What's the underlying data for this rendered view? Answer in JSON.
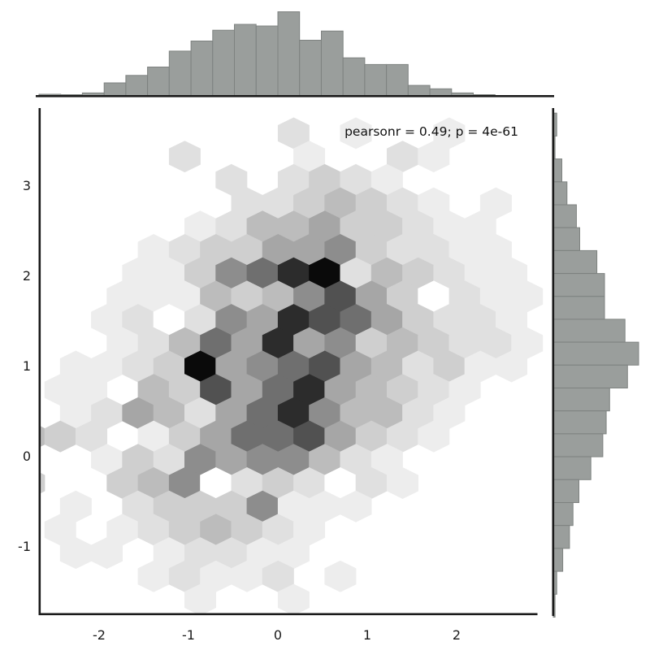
{
  "chart_data": {
    "type": "hexbin",
    "figure_kind": "joint-plot-with-marginal-histograms",
    "annotation": "pearsonr = 0.49; p = 4e-61",
    "pearson_r": 0.49,
    "p_value": "4e-61",
    "x_ticks": [
      -2,
      -1,
      0,
      1,
      2
    ],
    "y_ticks": [
      3,
      2,
      1,
      0,
      -1
    ],
    "x_tick_labels": [
      "-2",
      "-1",
      "0",
      "1",
      "2"
    ],
    "y_tick_labels": [
      "3",
      "2",
      "1",
      "0",
      "-1"
    ],
    "x_range": [
      -2.67,
      3.08
    ],
    "y_range": [
      -1.77,
      3.84
    ],
    "grid_on": false,
    "legend": "none",
    "colors": {
      "background": "#ffffff",
      "axis": "#1a1a1a",
      "hist_fill": "#9a9e9c",
      "hist_edge": "#7e8280",
      "density_levels": [
        "#ffffff",
        "#ededed",
        "#e0e0e0",
        "#cfcfcf",
        "#bcbcbc",
        "#a6a6a6",
        "#8d8d8d",
        "#6f6f6f",
        "#515151",
        "#2c2c2c",
        "#0a0a0a"
      ]
    },
    "hexbin": {
      "value_scale": "relative count density, 0 = lowest (white) to 10 = highest (black)",
      "grid": {
        "x0_even": -2.609,
        "x0_odd": -2.4349,
        "dx": 0.3482,
        "y0": 3.577,
        "dy": -0.2586
      },
      "rows": [
        {
          "k": 0,
          "cells": [
            [
              8,
              2
            ],
            [
              10,
              1
            ],
            [
              13,
              1
            ]
          ]
        },
        {
          "k": 1,
          "cells": [
            [
              4,
              2
            ],
            [
              8,
              1
            ],
            [
              11,
              2
            ],
            [
              12,
              1
            ]
          ]
        },
        {
          "k": 2,
          "cells": [
            [
              6,
              2
            ],
            [
              8,
              2
            ],
            [
              9,
              3
            ],
            [
              10,
              2
            ],
            [
              11,
              1
            ]
          ]
        },
        {
          "k": 3,
          "cells": [
            [
              6,
              2
            ],
            [
              7,
              2
            ],
            [
              8,
              3
            ],
            [
              9,
              4
            ],
            [
              10,
              3
            ],
            [
              11,
              2
            ],
            [
              12,
              1
            ],
            [
              14,
              1
            ]
          ]
        },
        {
          "k": 4,
          "cells": [
            [
              5,
              1
            ],
            [
              6,
              2
            ],
            [
              7,
              4
            ],
            [
              8,
              4
            ],
            [
              9,
              5
            ],
            [
              10,
              3
            ],
            [
              11,
              3
            ],
            [
              12,
              2
            ],
            [
              13,
              1
            ],
            [
              14,
              1
            ]
          ]
        },
        {
          "k": 5,
          "cells": [
            [
              3,
              1
            ],
            [
              4,
              2
            ],
            [
              5,
              3
            ],
            [
              6,
              3
            ],
            [
              7,
              5
            ],
            [
              8,
              5
            ],
            [
              9,
              6
            ],
            [
              10,
              3
            ],
            [
              11,
              2
            ],
            [
              12,
              2
            ],
            [
              13,
              1
            ],
            [
              14,
              1
            ]
          ]
        },
        {
          "k": 6,
          "cells": [
            [
              3,
              1
            ],
            [
              4,
              1
            ],
            [
              5,
              3
            ],
            [
              6,
              6
            ],
            [
              7,
              7
            ],
            [
              8,
              9
            ],
            [
              9,
              10
            ],
            [
              10,
              2
            ],
            [
              11,
              4
            ],
            [
              12,
              3
            ],
            [
              13,
              2
            ],
            [
              14,
              1
            ],
            [
              15,
              1
            ]
          ]
        },
        {
          "k": 7,
          "cells": [
            [
              2,
              1
            ],
            [
              3,
              1
            ],
            [
              4,
              1
            ],
            [
              5,
              4
            ],
            [
              6,
              3
            ],
            [
              7,
              4
            ],
            [
              8,
              6
            ],
            [
              9,
              8
            ],
            [
              10,
              5
            ],
            [
              11,
              3
            ],
            [
              12,
              0
            ],
            [
              13,
              2
            ],
            [
              14,
              1
            ],
            [
              15,
              1
            ]
          ]
        },
        {
          "k": 8,
          "cells": [
            [
              2,
              1
            ],
            [
              3,
              2
            ],
            [
              4,
              0
            ],
            [
              5,
              2
            ],
            [
              6,
              6
            ],
            [
              7,
              5
            ],
            [
              8,
              9
            ],
            [
              9,
              8
            ],
            [
              10,
              7
            ],
            [
              11,
              5
            ],
            [
              12,
              3
            ],
            [
              13,
              2
            ],
            [
              14,
              2
            ],
            [
              15,
              1
            ]
          ]
        },
        {
          "k": 9,
          "cells": [
            [
              2,
              1
            ],
            [
              3,
              2
            ],
            [
              4,
              4
            ],
            [
              5,
              7
            ],
            [
              6,
              5
            ],
            [
              7,
              9
            ],
            [
              8,
              5
            ],
            [
              9,
              6
            ],
            [
              10,
              3
            ],
            [
              11,
              4
            ],
            [
              12,
              3
            ],
            [
              13,
              2
            ],
            [
              14,
              2
            ],
            [
              15,
              1
            ]
          ]
        },
        {
          "k": 10,
          "cells": [
            [
              1,
              1
            ],
            [
              2,
              1
            ],
            [
              3,
              2
            ],
            [
              4,
              3
            ],
            [
              5,
              10
            ],
            [
              6,
              5
            ],
            [
              7,
              6
            ],
            [
              8,
              7
            ],
            [
              9,
              8
            ],
            [
              10,
              5
            ],
            [
              11,
              4
            ],
            [
              12,
              2
            ],
            [
              13,
              3
            ],
            [
              14,
              1
            ],
            [
              15,
              1
            ]
          ]
        },
        {
          "k": 11,
          "cells": [
            [
              0,
              1
            ],
            [
              1,
              1
            ],
            [
              3,
              4
            ],
            [
              4,
              3
            ],
            [
              5,
              8
            ],
            [
              6,
              5
            ],
            [
              7,
              7
            ],
            [
              8,
              9
            ],
            [
              9,
              5
            ],
            [
              10,
              4
            ],
            [
              11,
              3
            ],
            [
              12,
              2
            ],
            [
              13,
              1
            ]
          ]
        },
        {
          "k": 12,
          "cells": [
            [
              1,
              1
            ],
            [
              2,
              2
            ],
            [
              3,
              5
            ],
            [
              4,
              4
            ],
            [
              5,
              2
            ],
            [
              6,
              5
            ],
            [
              7,
              7
            ],
            [
              8,
              9
            ],
            [
              9,
              6
            ],
            [
              10,
              4
            ],
            [
              11,
              4
            ],
            [
              12,
              2
            ],
            [
              13,
              1
            ]
          ]
        },
        {
          "k": 13,
          "cells": [
            [
              -1,
              4
            ],
            [
              0,
              3
            ],
            [
              1,
              2
            ],
            [
              3,
              1
            ],
            [
              4,
              3
            ],
            [
              5,
              5
            ],
            [
              6,
              7
            ],
            [
              7,
              7
            ],
            [
              8,
              8
            ],
            [
              9,
              5
            ],
            [
              10,
              3
            ],
            [
              11,
              2
            ],
            [
              12,
              1
            ]
          ]
        },
        {
          "k": 14,
          "cells": [
            [
              2,
              1
            ],
            [
              3,
              3
            ],
            [
              4,
              2
            ],
            [
              5,
              6
            ],
            [
              6,
              5
            ],
            [
              7,
              6
            ],
            [
              8,
              6
            ],
            [
              9,
              4
            ],
            [
              10,
              2
            ],
            [
              11,
              1
            ]
          ]
        },
        {
          "k": 15,
          "cells": [
            [
              -1,
              3
            ],
            [
              2,
              3
            ],
            [
              3,
              4
            ],
            [
              4,
              6
            ],
            [
              5,
              0
            ],
            [
              6,
              2
            ],
            [
              7,
              3
            ],
            [
              8,
              2
            ],
            [
              9,
              0
            ],
            [
              10,
              2
            ],
            [
              11,
              1
            ]
          ]
        },
        {
          "k": 16,
          "cells": [
            [
              1,
              1
            ],
            [
              3,
              2
            ],
            [
              4,
              3
            ],
            [
              5,
              3
            ],
            [
              6,
              3
            ],
            [
              7,
              6
            ],
            [
              8,
              1
            ],
            [
              9,
              1
            ],
            [
              10,
              1
            ]
          ]
        },
        {
          "k": 17,
          "cells": [
            [
              0,
              1
            ],
            [
              2,
              1
            ],
            [
              3,
              2
            ],
            [
              4,
              3
            ],
            [
              5,
              4
            ],
            [
              6,
              3
            ],
            [
              7,
              2
            ],
            [
              8,
              1
            ]
          ]
        },
        {
          "k": 18,
          "cells": [
            [
              1,
              1
            ],
            [
              2,
              1
            ],
            [
              4,
              1
            ],
            [
              5,
              2
            ],
            [
              6,
              2
            ],
            [
              7,
              1
            ],
            [
              8,
              1
            ]
          ]
        },
        {
          "k": 19,
          "cells": [
            [
              3,
              1
            ],
            [
              4,
              2
            ],
            [
              5,
              1
            ],
            [
              6,
              1
            ],
            [
              7,
              2
            ],
            [
              9,
              1
            ]
          ]
        },
        {
          "k": 20,
          "cells": [
            [
              5,
              1
            ],
            [
              8,
              1
            ]
          ]
        }
      ]
    },
    "top_histogram": {
      "orientation": "vertical",
      "bin_start": -2.673,
      "bin_width": 0.243,
      "rel_heights": [
        0.015,
        0.01,
        0.03,
        0.15,
        0.24,
        0.34,
        0.53,
        0.65,
        0.78,
        0.85,
        0.83,
        1.0,
        0.66,
        0.77,
        0.45,
        0.37,
        0.37,
        0.12,
        0.08,
        0.03,
        0.01
      ]
    },
    "right_histogram": {
      "orientation": "horizontal",
      "bin_start": 3.8,
      "bin_width": 0.254,
      "rel_widths": [
        0.04,
        0.02,
        0.1,
        0.16,
        0.27,
        0.31,
        0.51,
        0.6,
        0.6,
        0.84,
        1.0,
        0.87,
        0.66,
        0.62,
        0.58,
        0.44,
        0.3,
        0.23,
        0.19,
        0.11,
        0.04,
        0.02
      ]
    }
  }
}
